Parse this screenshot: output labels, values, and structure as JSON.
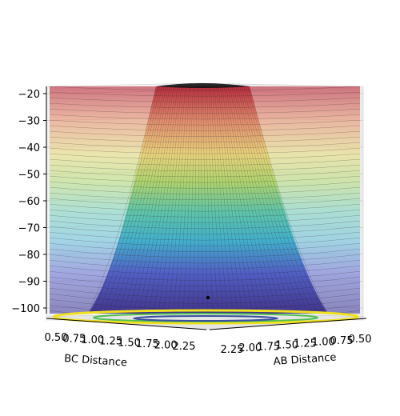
{
  "chart_data": {
    "type": "surface3d",
    "title": "",
    "xlabel": "BC Distance",
    "ylabel": "AB Distance",
    "zlabel": "",
    "x_ticks": [
      "0.50",
      "0.75",
      "1.00",
      "1.25",
      "1.50",
      "1.75",
      "2.00",
      "2.25"
    ],
    "y_ticks": [
      "2.25",
      "2.00",
      "1.75",
      "1.50",
      "1.25",
      "1.00",
      "0.75",
      "0.50"
    ],
    "z_ticks": [
      "-20",
      "-30",
      "-40",
      "-50",
      "-60",
      "-70",
      "-80",
      "-90",
      "-100"
    ],
    "zlim": [
      -105,
      -20
    ],
    "colormap": "jet",
    "surface_alpha": 0.45,
    "contour_projection": "viridis",
    "saddle_point": {
      "x": 1.0,
      "y": 1.0,
      "z": -98
    },
    "grid": true
  }
}
